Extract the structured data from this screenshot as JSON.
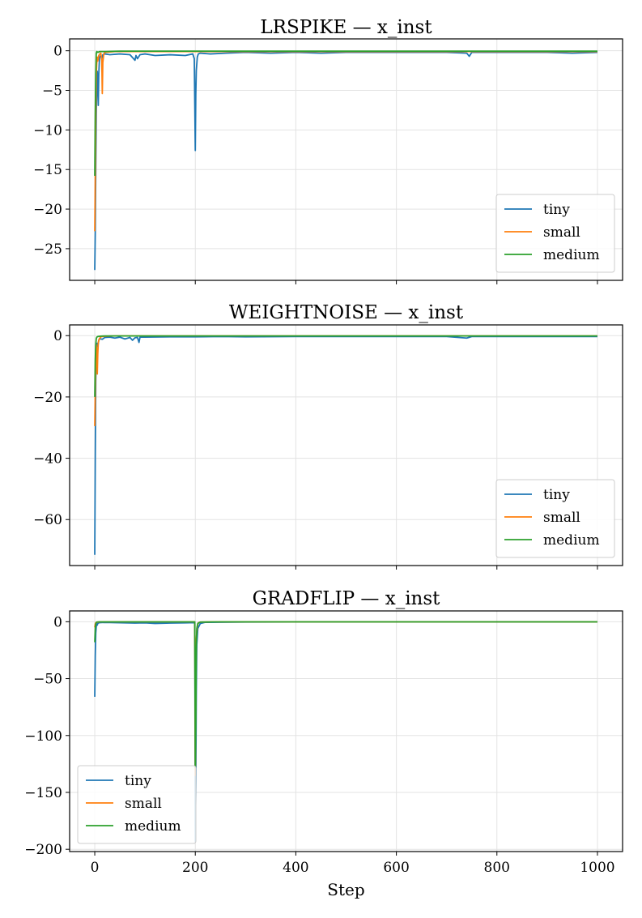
{
  "figure": {
    "xlabel": "Step"
  },
  "colors": {
    "tiny": "#1f77b4",
    "small": "#ff7f0e",
    "medium": "#2ca02c"
  },
  "chart_data": [
    {
      "type": "line",
      "title": "LRSPIKE — x_inst",
      "xlabel": "",
      "ylabel": "",
      "xlim": [
        -50,
        1050
      ],
      "ylim": [
        -29,
        1.5
      ],
      "xticks": [
        0,
        200,
        400,
        600,
        800,
        1000
      ],
      "show_xtick_labels": false,
      "yticks": [
        0,
        -5,
        -10,
        -15,
        -20,
        -25
      ],
      "ytick_labels": [
        "0",
        "−5",
        "−10",
        "−15",
        "−20",
        "−25"
      ],
      "grid": true,
      "legend": "bottom-right",
      "series": [
        {
          "name": "tiny",
          "color": "#1f77b4",
          "x": [
            0,
            1,
            2,
            3,
            4,
            5,
            6,
            7,
            8,
            9,
            10,
            12,
            14,
            16,
            20,
            30,
            50,
            70,
            80,
            82,
            85,
            90,
            100,
            120,
            150,
            180,
            195,
            198,
            200,
            201,
            202,
            204,
            206,
            210,
            230,
            260,
            300,
            350,
            400,
            450,
            500,
            550,
            600,
            650,
            700,
            740,
            745,
            750,
            800,
            850,
            900,
            950,
            1000
          ],
          "y": [
            -27.7,
            -23.0,
            -15.0,
            -8.0,
            -4.0,
            -2.6,
            -4.5,
            -6.9,
            -3.0,
            -1.5,
            -0.8,
            -0.6,
            -1.0,
            -0.5,
            -0.4,
            -0.5,
            -0.4,
            -0.5,
            -1.2,
            -0.6,
            -1.0,
            -0.5,
            -0.4,
            -0.6,
            -0.5,
            -0.6,
            -0.4,
            -1.0,
            -12.6,
            -5.5,
            -2.5,
            -0.8,
            -0.4,
            -0.3,
            -0.4,
            -0.3,
            -0.2,
            -0.3,
            -0.2,
            -0.3,
            -0.2,
            -0.2,
            -0.2,
            -0.2,
            -0.2,
            -0.3,
            -0.7,
            -0.2,
            -0.2,
            -0.2,
            -0.2,
            -0.3,
            -0.2
          ]
        },
        {
          "name": "small",
          "color": "#ff7f0e",
          "x": [
            0,
            1,
            2,
            3,
            4,
            5,
            6,
            8,
            10,
            12,
            14,
            15,
            16,
            18,
            20,
            40,
            100,
            200,
            400,
            600,
            800,
            1000
          ],
          "y": [
            -22.8,
            -16.0,
            -8.0,
            -3.0,
            -1.5,
            -0.8,
            -1.3,
            -0.6,
            -0.4,
            -0.3,
            -1.2,
            -5.4,
            -1.5,
            -0.4,
            -0.2,
            -0.1,
            -0.1,
            -0.1,
            -0.1,
            -0.1,
            -0.1,
            -0.1
          ]
        },
        {
          "name": "medium",
          "color": "#2ca02c",
          "x": [
            0,
            1,
            2,
            3,
            4,
            6,
            10,
            20,
            50,
            100,
            200,
            400,
            600,
            800,
            1000
          ],
          "y": [
            -15.8,
            -8.0,
            -3.0,
            -0.3,
            -0.1,
            -0.2,
            -0.1,
            -0.1,
            -0.05,
            -0.05,
            -0.05,
            -0.05,
            -0.05,
            -0.05,
            -0.05
          ]
        }
      ]
    },
    {
      "type": "line",
      "title": "WEIGHTNOISE — x_inst",
      "xlabel": "",
      "ylabel": "",
      "xlim": [
        -50,
        1050
      ],
      "ylim": [
        -75,
        3.5
      ],
      "xticks": [
        0,
        200,
        400,
        600,
        800,
        1000
      ],
      "show_xtick_labels": false,
      "yticks": [
        0,
        -20,
        -40,
        -60
      ],
      "ytick_labels": [
        "0",
        "−20",
        "−40",
        "−60"
      ],
      "grid": true,
      "legend": "bottom-right",
      "series": [
        {
          "name": "tiny",
          "color": "#1f77b4",
          "x": [
            0,
            1,
            2,
            3,
            4,
            5,
            6,
            8,
            10,
            15,
            20,
            30,
            40,
            50,
            60,
            70,
            75,
            80,
            85,
            88,
            90,
            100,
            150,
            200,
            250,
            300,
            400,
            500,
            600,
            700,
            740,
            750,
            800,
            900,
            1000
          ],
          "y": [
            -71.5,
            -40.0,
            -15.0,
            -6.0,
            -3.0,
            -2.5,
            -3.5,
            -1.5,
            -1.0,
            -1.2,
            -0.6,
            -0.5,
            -0.8,
            -0.5,
            -1.1,
            -0.6,
            -1.5,
            -0.7,
            -0.6,
            -2.2,
            -0.5,
            -0.5,
            -0.4,
            -0.4,
            -0.3,
            -0.4,
            -0.3,
            -0.3,
            -0.3,
            -0.3,
            -0.8,
            -0.3,
            -0.3,
            -0.3,
            -0.3
          ]
        },
        {
          "name": "small",
          "color": "#ff7f0e",
          "x": [
            0,
            1,
            2,
            3,
            4,
            5,
            6,
            7,
            8,
            10,
            12,
            15,
            20,
            40,
            100,
            200,
            400,
            600,
            800,
            1000
          ],
          "y": [
            -29.5,
            -18.0,
            -8.0,
            -3.0,
            -5.0,
            -12.5,
            -6.0,
            -2.5,
            -1.5,
            -0.8,
            -0.4,
            -0.3,
            -0.2,
            -0.1,
            -0.1,
            -0.1,
            -0.1,
            -0.1,
            -0.1,
            -0.1
          ]
        },
        {
          "name": "medium",
          "color": "#2ca02c",
          "x": [
            0,
            1,
            2,
            3,
            4,
            6,
            10,
            20,
            50,
            100,
            200,
            400,
            600,
            800,
            1000
          ],
          "y": [
            -20.0,
            -8.0,
            -3.0,
            -1.0,
            -0.5,
            -0.3,
            -0.2,
            -0.1,
            -0.1,
            -0.1,
            -0.1,
            -0.1,
            -0.1,
            -0.1,
            -0.1
          ]
        }
      ]
    },
    {
      "type": "line",
      "title": "GRADFLIP — x_inst",
      "xlabel": "Step",
      "ylabel": "",
      "xlim": [
        -50,
        1050
      ],
      "ylim": [
        -202,
        9.5
      ],
      "xticks": [
        0,
        200,
        400,
        600,
        800,
        1000
      ],
      "xtick_labels": [
        "0",
        "200",
        "400",
        "600",
        "800",
        "1000"
      ],
      "show_xtick_labels": true,
      "yticks": [
        0,
        -50,
        -100,
        -150,
        -200
      ],
      "ytick_labels": [
        "0",
        "−50",
        "−100",
        "−150",
        "−200"
      ],
      "grid": true,
      "legend": "bottom-left",
      "series": [
        {
          "name": "tiny",
          "color": "#1f77b4",
          "x": [
            0,
            1,
            2,
            3,
            4,
            5,
            6,
            8,
            10,
            20,
            40,
            60,
            80,
            100,
            120,
            150,
            180,
            198,
            199,
            200,
            201,
            202,
            203,
            205,
            210,
            220,
            300,
            400,
            600,
            800,
            1000
          ],
          "y": [
            -66.0,
            -30.0,
            -10.0,
            -4.0,
            -2.0,
            -3.0,
            -1.5,
            -1.0,
            -0.8,
            -0.6,
            -0.8,
            -1.0,
            -1.2,
            -1.0,
            -1.5,
            -1.2,
            -1.0,
            -0.8,
            -2.0,
            -193.0,
            -140.0,
            -60.0,
            -20.0,
            -6.0,
            -1.5,
            -0.5,
            -0.3,
            -0.2,
            -0.2,
            -0.2,
            -0.2
          ]
        },
        {
          "name": "small",
          "color": "#ff7f0e",
          "x": [
            0,
            1,
            2,
            3,
            4,
            6,
            10,
            20,
            50,
            100,
            150,
            199,
            200,
            201,
            202,
            204,
            206,
            210,
            250,
            400,
            600,
            800,
            1000
          ],
          "y": [
            -5.0,
            -2.0,
            -1.0,
            -0.5,
            -0.3,
            -0.4,
            -0.2,
            -0.1,
            -0.1,
            -0.1,
            -0.1,
            -0.1,
            -135.0,
            -60.0,
            -15.0,
            -4.0,
            -1.0,
            -0.3,
            -0.1,
            -0.1,
            -0.1,
            -0.1,
            -0.1
          ]
        },
        {
          "name": "medium",
          "color": "#2ca02c",
          "x": [
            0,
            1,
            2,
            3,
            4,
            6,
            10,
            20,
            50,
            100,
            150,
            199,
            200,
            201,
            202,
            203,
            205,
            210,
            250,
            400,
            600,
            800,
            1000
          ],
          "y": [
            -18.0,
            -6.0,
            -2.0,
            -0.8,
            -0.3,
            -0.2,
            -0.1,
            -0.1,
            -0.1,
            -0.1,
            -0.1,
            -0.1,
            -128.0,
            -90.0,
            -25.0,
            -6.0,
            -1.5,
            -0.3,
            -0.1,
            -0.1,
            -0.1,
            -0.1,
            -0.1
          ]
        }
      ]
    }
  ]
}
